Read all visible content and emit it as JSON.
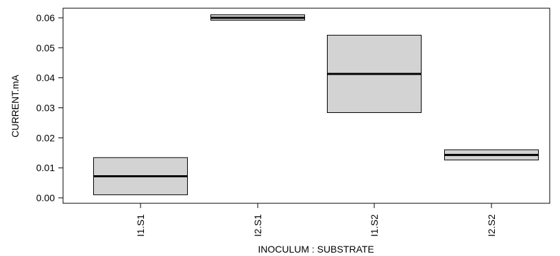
{
  "chart_data": {
    "type": "boxplot",
    "xlabel": "INOCULUM : SUBSTRATE",
    "ylabel": "CURRENT.mA",
    "ylim": [
      0,
      0.06
    ],
    "yticks": [
      "0.00",
      "0.01",
      "0.02",
      "0.03",
      "0.04",
      "0.05",
      "0.06"
    ],
    "categories": [
      "I1.S1",
      "I2.S1",
      "I1.S2",
      "I2.S2"
    ],
    "boxes": [
      {
        "category": "I1.S1",
        "lower": 0.001,
        "median": 0.0072,
        "upper": 0.0134
      },
      {
        "category": "I2.S1",
        "lower": 0.0592,
        "median": 0.06,
        "upper": 0.061
      },
      {
        "category": "I1.S2",
        "lower": 0.0284,
        "median": 0.0413,
        "upper": 0.0542
      },
      {
        "category": "I2.S2",
        "lower": 0.0126,
        "median": 0.0143,
        "upper": 0.016
      }
    ],
    "box_fill": "#d3d3d3",
    "grid": false
  }
}
